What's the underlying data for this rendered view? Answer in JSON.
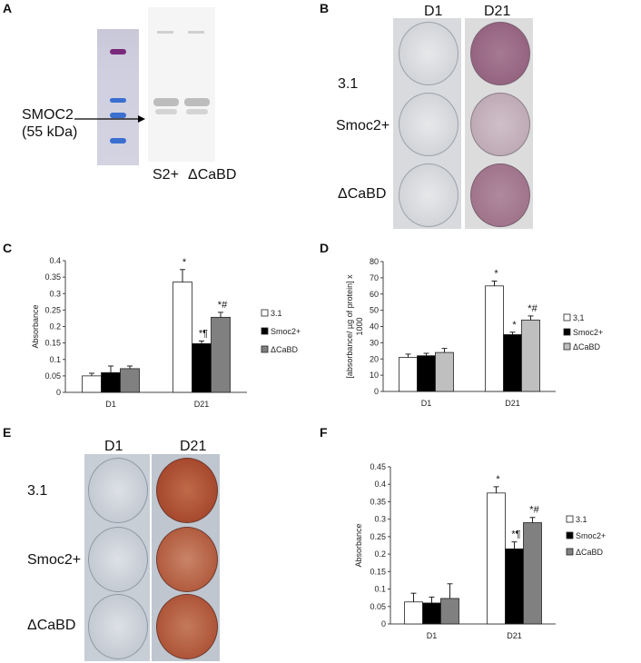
{
  "panels": {
    "a": {
      "letter": "A",
      "protein_label": "SMOC2",
      "size_label": "(55 kDa)",
      "lane_label_1": "S2+",
      "lane_label_2": "ΔCaBD"
    },
    "b": {
      "letter": "B",
      "col_d1": "D1",
      "col_d21": "D21",
      "rows": [
        "3.1",
        "Smoc2+",
        "ΔCaBD"
      ],
      "stain_color": "#8e5a7a"
    },
    "e": {
      "letter": "E",
      "col_d1": "D1",
      "col_d21": "D21",
      "rows": [
        "3.1",
        "Smoc2+",
        "ΔCaBD"
      ],
      "stain_color": "#9c3b22"
    }
  },
  "chart_data": [
    {
      "panel": "C",
      "type": "bar",
      "categories": [
        "D1",
        "D21"
      ],
      "ylabel": "Absorbance",
      "ylim": [
        0,
        0.4
      ],
      "yticks": [
        "0",
        "0.05",
        "0.1",
        "0.15",
        "0.2",
        "0.25",
        "0.3",
        "0.35",
        "0.4"
      ],
      "series": [
        {
          "name": "3.1",
          "color": "#ffffff",
          "values": [
            0.05,
            0.335
          ],
          "errors": [
            0.008,
            0.038
          ]
        },
        {
          "name": "Smoc2+",
          "color": "#000000",
          "values": [
            0.06,
            0.148
          ],
          "errors": [
            0.02,
            0.008
          ]
        },
        {
          "name": "ΔCaBD",
          "color": "#808080",
          "values": [
            0.072,
            0.228
          ],
          "errors": [
            0.008,
            0.015
          ]
        }
      ],
      "annotations": [
        [
          "",
          "",
          ""
        ],
        [
          "*",
          "*¶",
          "*#"
        ]
      ]
    },
    {
      "panel": "D",
      "type": "bar",
      "categories": [
        "D1",
        "D21"
      ],
      "ylabel": "[absorbance/ µg of protein] x 1000",
      "ylim": [
        0,
        80
      ],
      "yticks": [
        "0",
        "10",
        "20",
        "30",
        "40",
        "50",
        "60",
        "70",
        "80"
      ],
      "series": [
        {
          "name": "3,1",
          "color": "#ffffff",
          "values": [
            21,
            65
          ],
          "errors": [
            2,
            3
          ]
        },
        {
          "name": "Smoc2+",
          "color": "#000000",
          "values": [
            22,
            35
          ],
          "errors": [
            1.5,
            1.5
          ]
        },
        {
          "name": "ΔCaBD",
          "color": "#bfbfbf",
          "values": [
            24,
            44
          ],
          "errors": [
            2.5,
            2.5
          ]
        }
      ],
      "annotations": [
        [
          "",
          "",
          ""
        ],
        [
          "*",
          "*",
          "*#"
        ]
      ]
    },
    {
      "panel": "F",
      "type": "bar",
      "categories": [
        "D1",
        "D21"
      ],
      "ylabel": "Absorbance",
      "ylim": [
        0,
        0.45
      ],
      "yticks": [
        "0",
        "0.05",
        "0.1",
        "0.15",
        "0.2",
        "0.25",
        "0.3",
        "0.35",
        "0.4",
        "0.45"
      ],
      "series": [
        {
          "name": "3.1",
          "color": "#ffffff",
          "values": [
            0.063,
            0.375
          ],
          "errors": [
            0.025,
            0.018
          ]
        },
        {
          "name": "Smoc2+",
          "color": "#000000",
          "values": [
            0.06,
            0.215
          ],
          "errors": [
            0.017,
            0.02
          ]
        },
        {
          "name": "ΔCaBD",
          "color": "#808080",
          "values": [
            0.073,
            0.29
          ],
          "errors": [
            0.042,
            0.015
          ]
        }
      ],
      "annotations": [
        [
          "",
          "",
          ""
        ],
        [
          "*",
          "*¶",
          "*#"
        ]
      ]
    }
  ]
}
